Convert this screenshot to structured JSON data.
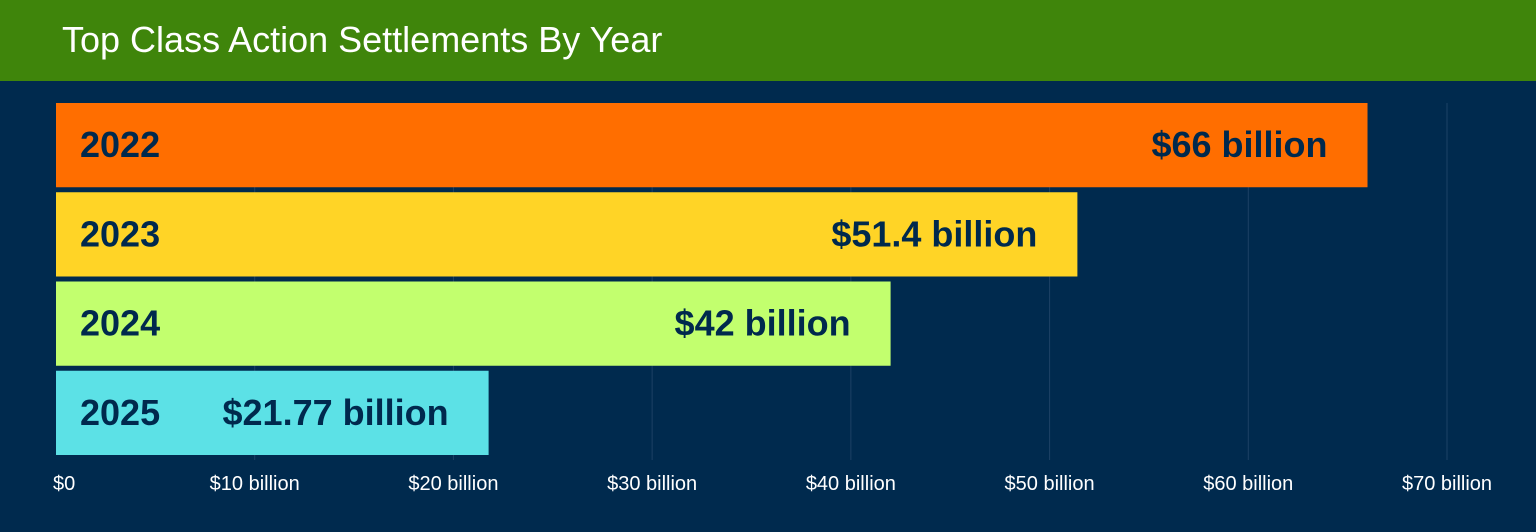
{
  "chart_data": {
    "type": "bar",
    "orientation": "horizontal",
    "title": "Top Class Action Settlements By Year",
    "categories": [
      "2022",
      "2023",
      "2024",
      "2025"
    ],
    "values": [
      66,
      51.4,
      42,
      21.77
    ],
    "value_labels": [
      "$66 billion",
      "$51.4 billion",
      "$42 billion",
      "$21.77 billion"
    ],
    "colors": [
      "#ff6e00",
      "#ffd426",
      "#c2ff6e",
      "#5ce1e6"
    ],
    "xlim": [
      0,
      70
    ],
    "x_ticks": [
      0,
      10,
      20,
      30,
      40,
      50,
      60,
      70
    ],
    "x_tick_labels": [
      "$0",
      "$10 billion",
      "$20 billion",
      "$30 billion",
      "$40 billion",
      "$50 billion",
      "$60 billion",
      "$70 billion"
    ],
    "unit": "billion USD",
    "grid": true,
    "text_color": "#00294d",
    "background": "#002a4e",
    "header_color": "#3f850b"
  }
}
